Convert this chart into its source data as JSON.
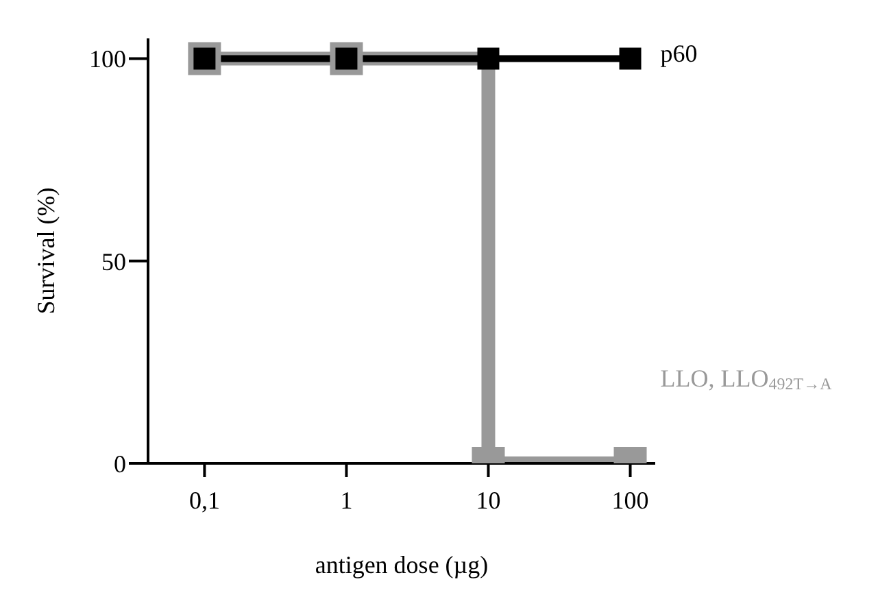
{
  "chart_data": {
    "type": "line",
    "xlabel": "antigen dose (µg)",
    "ylabel": "Survival (%)",
    "log": "x",
    "xlim": [
      0.04,
      150
    ],
    "xticks": [
      {
        "value": 0.1,
        "label": "0,1"
      },
      1,
      10,
      100
    ],
    "ylim": [
      0,
      105
    ],
    "yticks": [
      0,
      50,
      100
    ],
    "grid": false,
    "marker": "square",
    "series": [
      {
        "name": "LLO, LLO$_{492T→A}$",
        "type": "step",
        "color": "#999999",
        "x": [
          0.1,
          1,
          10,
          100
        ],
        "values": [
          100,
          100,
          0,
          0
        ]
      },
      {
        "name": "p60",
        "color": "#000000",
        "x": [
          0.1,
          1,
          10,
          100
        ],
        "values": [
          100,
          100,
          100,
          100
        ]
      }
    ]
  }
}
